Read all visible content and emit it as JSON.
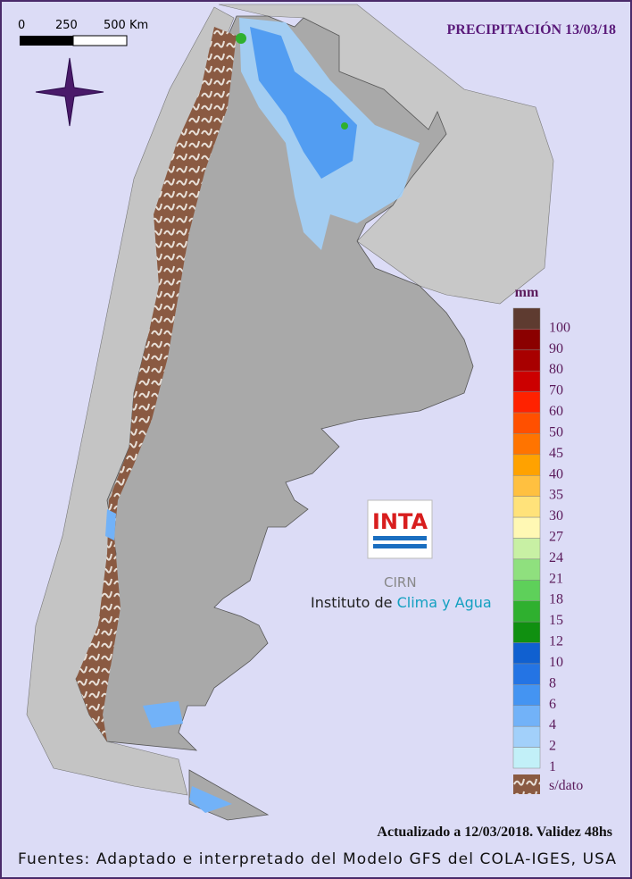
{
  "scale_bar": {
    "labels": [
      "0",
      "250",
      "500 Km"
    ]
  },
  "title": "PRECIPITACIÓN 13/03/18",
  "legend": {
    "unit": "mm",
    "items": [
      {
        "value": 100,
        "color": "#5e3b30"
      },
      {
        "value": 90,
        "color": "#8b0000"
      },
      {
        "value": 80,
        "color": "#a80000"
      },
      {
        "value": 70,
        "color": "#cc0000"
      },
      {
        "value": 60,
        "color": "#ff2200"
      },
      {
        "value": 50,
        "color": "#ff5000"
      },
      {
        "value": 45,
        "color": "#ff7400"
      },
      {
        "value": 40,
        "color": "#ffa200"
      },
      {
        "value": 35,
        "color": "#ffc040"
      },
      {
        "value": 30,
        "color": "#ffe27a"
      },
      {
        "value": 27,
        "color": "#fff8b4"
      },
      {
        "value": 24,
        "color": "#c8f0a4"
      },
      {
        "value": 21,
        "color": "#8fe07e"
      },
      {
        "value": 18,
        "color": "#5ed05a"
      },
      {
        "value": 15,
        "color": "#2fb02f"
      },
      {
        "value": 12,
        "color": "#109010"
      },
      {
        "value": 10,
        "color": "#1060d0"
      },
      {
        "value": 8,
        "color": "#2474e4"
      },
      {
        "value": 6,
        "color": "#4494f2"
      },
      {
        "value": 4,
        "color": "#72b2f8"
      },
      {
        "value": 2,
        "color": "#a2d0fa"
      },
      {
        "value": 1,
        "color": "#c2f0f8"
      }
    ],
    "no_data_label": "s/dato"
  },
  "logo": {
    "brand": "INTA",
    "unit": "CIRN",
    "institute_prefix": "Instituto de",
    "institute_name": "Clima y Agua"
  },
  "updated": "Actualizado a 12/03/2018. Validez 48hs",
  "sources": "Fuentes: Adaptado e interpretado del Modelo GFS del COLA-IGES, USA"
}
